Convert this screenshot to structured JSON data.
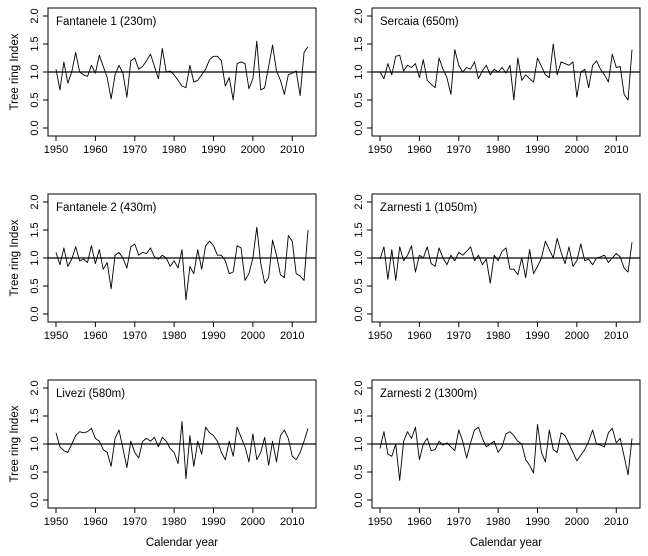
{
  "chart_data": [
    {
      "type": "line",
      "title": "Fantanele 1 (230m)",
      "ylabel": "Tree ring Index",
      "xlabel": "",
      "xlim": [
        1950,
        2014
      ],
      "ylim": [
        0.0,
        2.0
      ],
      "xticks": [
        "1950",
        "1960",
        "1970",
        "1980",
        "1990",
        "2000",
        "2010"
      ],
      "yticks": [
        "0.0",
        "0.5",
        "1.0",
        "1.5",
        "2.0"
      ],
      "reference_line": 1.0,
      "x_start": 1950,
      "values": [
        1.05,
        0.68,
        1.18,
        0.8,
        1.0,
        1.35,
        1.0,
        0.95,
        0.92,
        1.12,
        0.98,
        1.3,
        1.1,
        0.9,
        0.52,
        0.95,
        1.12,
        0.98,
        0.55,
        1.2,
        1.25,
        1.05,
        1.1,
        1.2,
        1.32,
        1.1,
        0.88,
        1.42,
        1.0,
        1.02,
        0.95,
        0.85,
        0.75,
        0.72,
        1.12,
        0.82,
        0.85,
        0.95,
        1.05,
        1.22,
        1.28,
        1.28,
        1.2,
        0.75,
        0.9,
        0.5,
        1.15,
        1.18,
        1.15,
        0.7,
        0.88,
        1.55,
        0.68,
        0.72,
        1.1,
        1.48,
        1.02,
        0.85,
        0.6,
        0.95,
        0.98,
        1.02,
        0.58,
        1.35,
        1.45
      ]
    },
    {
      "type": "line",
      "title": "Sercaia (650m)",
      "ylabel": "",
      "xlabel": "",
      "xlim": [
        1950,
        2014
      ],
      "ylim": [
        0.0,
        2.0
      ],
      "xticks": [
        "1950",
        "1960",
        "1970",
        "1980",
        "1990",
        "2000",
        "2010"
      ],
      "yticks": [
        "0.0",
        "0.5",
        "1.0",
        "1.5",
        "2.0"
      ],
      "reference_line": 1.0,
      "x_start": 1950,
      "values": [
        1.0,
        0.88,
        1.15,
        0.95,
        1.28,
        1.3,
        1.02,
        1.12,
        1.08,
        1.15,
        0.9,
        1.22,
        0.85,
        0.78,
        0.72,
        1.25,
        1.05,
        0.9,
        0.6,
        1.4,
        1.12,
        1.0,
        1.08,
        1.05,
        1.18,
        0.88,
        1.02,
        1.12,
        0.95,
        1.05,
        1.0,
        1.08,
        0.98,
        1.12,
        0.5,
        1.25,
        0.85,
        0.95,
        0.88,
        0.82,
        1.25,
        1.1,
        0.95,
        0.9,
        1.5,
        0.95,
        1.18,
        1.15,
        1.12,
        1.18,
        0.55,
        1.0,
        1.05,
        0.72,
        1.12,
        1.2,
        1.05,
        0.95,
        0.82,
        1.32,
        1.08,
        1.1,
        0.6,
        0.5,
        1.4
      ]
    },
    {
      "type": "line",
      "title": "Fantanele 2 (430m)",
      "ylabel": "Tree ring Index",
      "xlabel": "",
      "xlim": [
        1950,
        2014
      ],
      "ylim": [
        0.0,
        2.0
      ],
      "xticks": [
        "1950",
        "1960",
        "1970",
        "1980",
        "1990",
        "2000",
        "2010"
      ],
      "yticks": [
        "0.0",
        "0.5",
        "1.0",
        "1.5",
        "2.0"
      ],
      "reference_line": 1.0,
      "x_start": 1950,
      "values": [
        1.1,
        0.88,
        1.18,
        0.85,
        0.98,
        1.2,
        0.95,
        0.98,
        0.92,
        1.22,
        0.9,
        1.15,
        0.8,
        0.92,
        0.45,
        1.05,
        1.1,
        1.0,
        0.82,
        1.2,
        1.25,
        1.05,
        1.1,
        1.08,
        1.18,
        1.02,
        0.98,
        1.05,
        1.0,
        0.85,
        0.95,
        0.82,
        1.15,
        0.25,
        0.85,
        0.72,
        1.15,
        0.8,
        1.22,
        1.3,
        1.22,
        1.05,
        1.05,
        0.95,
        0.72,
        0.75,
        1.22,
        1.18,
        0.6,
        0.72,
        1.0,
        1.55,
        0.9,
        0.55,
        0.65,
        1.32,
        1.05,
        0.7,
        0.65,
        1.4,
        1.3,
        0.72,
        0.68,
        0.6,
        1.5
      ]
    },
    {
      "type": "line",
      "title": "Zarnesti 1 (1050m)",
      "ylabel": "",
      "xlabel": "",
      "xlim": [
        1950,
        2014
      ],
      "ylim": [
        0.0,
        2.0
      ],
      "xticks": [
        "1950",
        "1960",
        "1970",
        "1980",
        "1990",
        "2000",
        "2010"
      ],
      "yticks": [
        "0.0",
        "0.5",
        "1.0",
        "1.5",
        "2.0"
      ],
      "reference_line": 1.0,
      "x_start": 1950,
      "values": [
        0.98,
        1.2,
        0.62,
        1.15,
        0.6,
        1.2,
        0.95,
        1.05,
        1.22,
        0.75,
        1.05,
        1.0,
        1.2,
        0.9,
        0.85,
        1.18,
        1.0,
        0.88,
        1.05,
        0.95,
        1.1,
        1.05,
        1.12,
        1.2,
        0.95,
        1.05,
        0.88,
        0.98,
        0.55,
        1.05,
        0.95,
        1.12,
        1.18,
        0.8,
        0.8,
        0.7,
        1.0,
        0.65,
        1.15,
        0.72,
        0.85,
        1.0,
        1.3,
        1.15,
        1.0,
        1.35,
        1.1,
        0.9,
        1.2,
        0.85,
        0.95,
        1.25,
        0.95,
        0.98,
        0.88,
        1.0,
        1.02,
        1.05,
        0.92,
        1.0,
        1.08,
        1.02,
        0.82,
        0.75,
        1.28
      ]
    },
    {
      "type": "line",
      "title": "Livezi (580m)",
      "ylabel": "Tree ring Index",
      "xlabel": "Calendar year",
      "xlim": [
        1950,
        2014
      ],
      "ylim": [
        0.0,
        2.0
      ],
      "xticks": [
        "1950",
        "1960",
        "1970",
        "1980",
        "1990",
        "2000",
        "2010"
      ],
      "yticks": [
        "0.0",
        "0.5",
        "1.0",
        "1.5",
        "2.0"
      ],
      "reference_line": 1.0,
      "x_start": 1950,
      "values": [
        1.2,
        0.95,
        0.88,
        0.85,
        1.0,
        1.15,
        1.22,
        1.2,
        1.22,
        1.28,
        1.1,
        1.05,
        0.9,
        0.85,
        0.6,
        1.1,
        1.25,
        0.92,
        0.58,
        1.05,
        0.85,
        0.75,
        1.05,
        1.1,
        1.05,
        1.12,
        0.95,
        1.12,
        1.05,
        0.92,
        0.85,
        0.65,
        1.4,
        0.38,
        1.15,
        0.6,
        1.05,
        0.82,
        1.3,
        1.2,
        1.15,
        1.05,
        0.85,
        0.72,
        1.05,
        0.78,
        1.3,
        1.12,
        0.95,
        0.68,
        1.18,
        0.72,
        0.85,
        1.12,
        0.62,
        1.05,
        0.68,
        1.15,
        1.25,
        1.1,
        0.78,
        0.72,
        0.85,
        1.05,
        1.28
      ]
    },
    {
      "type": "line",
      "title": "Zarnesti 2 (1300m)",
      "ylabel": "",
      "xlabel": "Calendar year",
      "xlim": [
        1950,
        2014
      ],
      "ylim": [
        0.0,
        2.0
      ],
      "xticks": [
        "1950",
        "1960",
        "1970",
        "1980",
        "1990",
        "2000",
        "2010"
      ],
      "yticks": [
        "0.0",
        "0.5",
        "1.0",
        "1.5",
        "2.0"
      ],
      "reference_line": 1.0,
      "x_start": 1950,
      "values": [
        0.92,
        1.22,
        0.82,
        0.78,
        1.0,
        0.35,
        1.05,
        1.22,
        1.1,
        1.3,
        0.72,
        1.0,
        1.1,
        0.88,
        0.9,
        1.05,
        0.98,
        1.02,
        0.95,
        0.88,
        1.25,
        1.05,
        0.75,
        1.02,
        1.25,
        1.3,
        1.1,
        0.95,
        1.0,
        1.05,
        0.85,
        0.95,
        1.18,
        1.22,
        1.15,
        1.05,
        1.0,
        0.72,
        0.62,
        0.48,
        1.35,
        0.85,
        0.68,
        1.25,
        0.9,
        0.85,
        1.2,
        1.15,
        1.0,
        0.85,
        0.7,
        0.8,
        0.9,
        1.05,
        1.25,
        1.0,
        0.98,
        0.95,
        1.2,
        1.28,
        1.02,
        1.1,
        0.78,
        0.45,
        1.1
      ]
    }
  ]
}
